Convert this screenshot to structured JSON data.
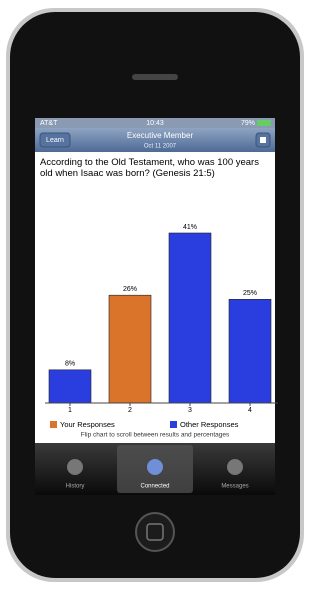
{
  "status_bar": {
    "carrier": "AT&T",
    "time": "10:43",
    "battery": "79%"
  },
  "nav": {
    "button_left": "Learn",
    "title": "Executive Member",
    "subtitle": "Oct 11 2007"
  },
  "question": "According to the Old Testament, who was 100 years old when Isaac was born? (Genesis 21:5)",
  "chart_data": {
    "type": "bar",
    "categories": [
      "1",
      "2",
      "3",
      "4"
    ],
    "series": [
      {
        "name": "Your Responses",
        "color": "#d9742a",
        "values": [
          null,
          26,
          null,
          null
        ],
        "value_labels": [
          null,
          "26%",
          null,
          null
        ]
      },
      {
        "name": "Other Responses",
        "color": "#2a3ee0",
        "values": [
          8,
          null,
          41,
          25
        ],
        "value_labels": [
          "8%",
          null,
          "41%",
          "25%"
        ]
      }
    ],
    "note": "Flip chart to scroll between results and percentages"
  },
  "tabs": [
    "History",
    "Connected",
    "Messages"
  ]
}
